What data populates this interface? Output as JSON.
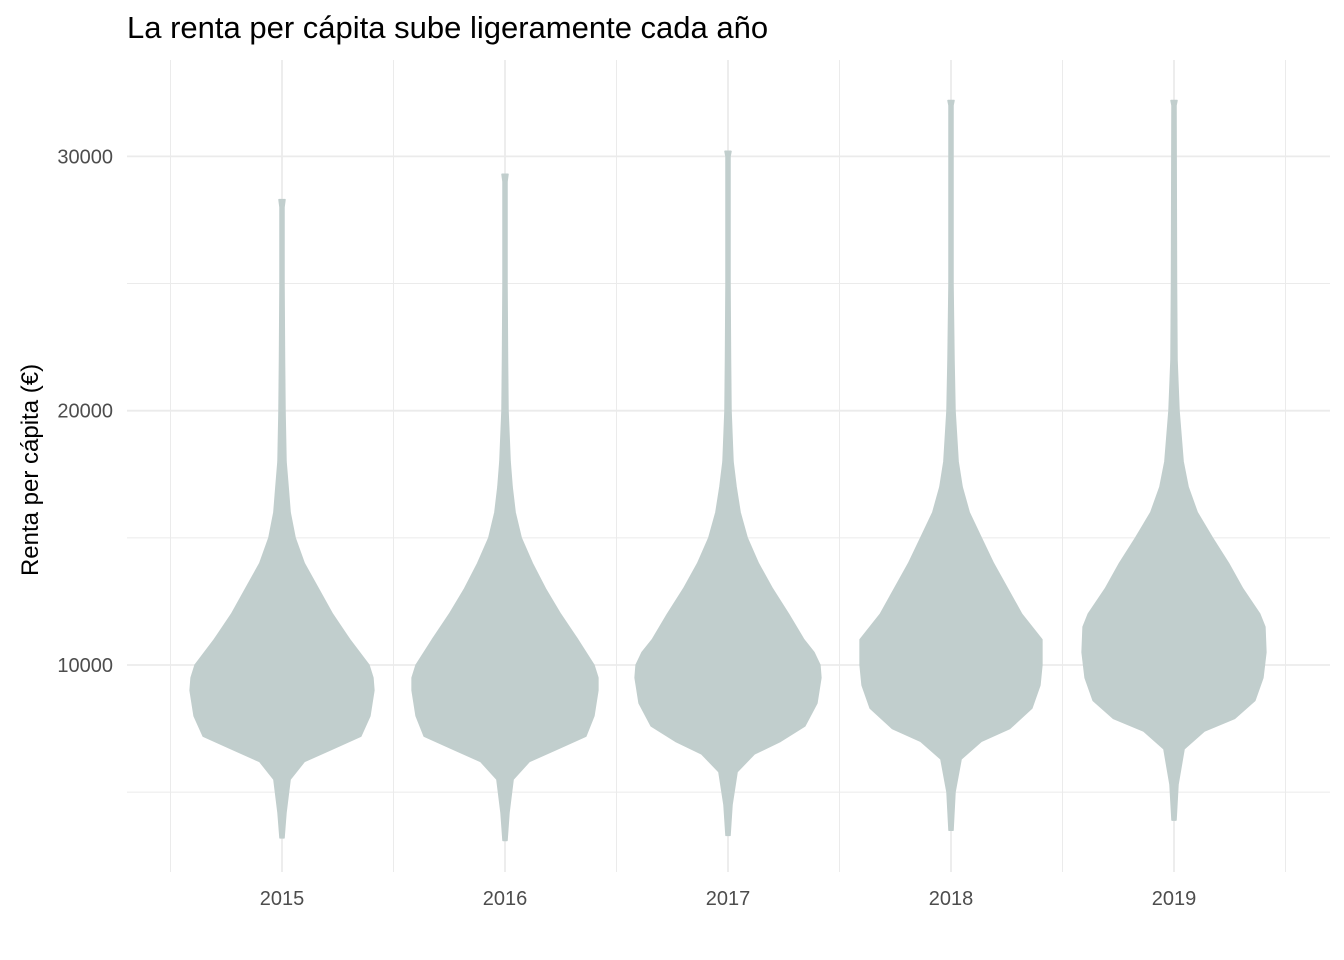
{
  "chart_data": {
    "type": "violin",
    "title": "La renta per cápita sube ligeramente cada año",
    "xlabel": "",
    "ylabel": "Renta per cápita (€)",
    "categories": [
      "2015",
      "2016",
      "2017",
      "2018",
      "2019"
    ],
    "yticks": [
      10000,
      20000,
      30000
    ],
    "ylim": [
      3000,
      33000
    ],
    "grid": true,
    "fill_color": "#c1cecd",
    "grid_color": "#ebebeb",
    "violins": [
      {
        "category": "2015",
        "min": 3200,
        "max": 28300,
        "profile": [
          [
            3200,
            0.02
          ],
          [
            4200,
            0.04
          ],
          [
            5500,
            0.08
          ],
          [
            6200,
            0.22
          ],
          [
            6700,
            0.5
          ],
          [
            7200,
            0.78
          ],
          [
            8000,
            0.87
          ],
          [
            9000,
            0.91
          ],
          [
            9500,
            0.9
          ],
          [
            10000,
            0.86
          ],
          [
            11000,
            0.67
          ],
          [
            12000,
            0.5
          ],
          [
            13000,
            0.36
          ],
          [
            14000,
            0.22
          ],
          [
            15000,
            0.13
          ],
          [
            16000,
            0.08
          ],
          [
            17000,
            0.06
          ],
          [
            18000,
            0.04
          ],
          [
            20000,
            0.03
          ],
          [
            22000,
            0.025
          ],
          [
            25000,
            0.02
          ],
          [
            28000,
            0.02
          ],
          [
            28300,
            0.03
          ]
        ]
      },
      {
        "category": "2016",
        "min": 3100,
        "max": 29300,
        "profile": [
          [
            3100,
            0.02
          ],
          [
            4200,
            0.04
          ],
          [
            5500,
            0.08
          ],
          [
            6200,
            0.24
          ],
          [
            6700,
            0.52
          ],
          [
            7200,
            0.8
          ],
          [
            8000,
            0.88
          ],
          [
            9000,
            0.92
          ],
          [
            9500,
            0.92
          ],
          [
            10000,
            0.88
          ],
          [
            11000,
            0.72
          ],
          [
            12000,
            0.55
          ],
          [
            13000,
            0.4
          ],
          [
            14000,
            0.27
          ],
          [
            15000,
            0.16
          ],
          [
            16000,
            0.1
          ],
          [
            17000,
            0.07
          ],
          [
            18000,
            0.05
          ],
          [
            20000,
            0.03
          ],
          [
            22000,
            0.025
          ],
          [
            25000,
            0.02
          ],
          [
            29000,
            0.02
          ],
          [
            29300,
            0.03
          ]
        ]
      },
      {
        "category": "2017",
        "min": 3300,
        "max": 30200,
        "profile": [
          [
            3300,
            0.02
          ],
          [
            4500,
            0.04
          ],
          [
            5800,
            0.09
          ],
          [
            6500,
            0.26
          ],
          [
            7000,
            0.52
          ],
          [
            7600,
            0.76
          ],
          [
            8500,
            0.88
          ],
          [
            9500,
            0.92
          ],
          [
            10000,
            0.91
          ],
          [
            10500,
            0.85
          ],
          [
            11000,
            0.75
          ],
          [
            12000,
            0.6
          ],
          [
            13000,
            0.44
          ],
          [
            14000,
            0.3
          ],
          [
            15000,
            0.19
          ],
          [
            16000,
            0.12
          ],
          [
            17000,
            0.08
          ],
          [
            18000,
            0.05
          ],
          [
            20000,
            0.03
          ],
          [
            22000,
            0.025
          ],
          [
            25000,
            0.02
          ],
          [
            30000,
            0.02
          ],
          [
            30200,
            0.03
          ]
        ]
      },
      {
        "category": "2018",
        "min": 3500,
        "max": 32200,
        "profile": [
          [
            3500,
            0.02
          ],
          [
            5000,
            0.04
          ],
          [
            6300,
            0.1
          ],
          [
            7000,
            0.3
          ],
          [
            7500,
            0.58
          ],
          [
            8300,
            0.8
          ],
          [
            9200,
            0.88
          ],
          [
            10000,
            0.9
          ],
          [
            11000,
            0.9
          ],
          [
            11500,
            0.8
          ],
          [
            12000,
            0.7
          ],
          [
            13000,
            0.56
          ],
          [
            14000,
            0.42
          ],
          [
            15000,
            0.3
          ],
          [
            16000,
            0.18
          ],
          [
            17000,
            0.11
          ],
          [
            18000,
            0.07
          ],
          [
            20000,
            0.04
          ],
          [
            22000,
            0.03
          ],
          [
            25000,
            0.02
          ],
          [
            32000,
            0.02
          ],
          [
            32200,
            0.03
          ]
        ]
      },
      {
        "category": "2019",
        "min": 3900,
        "max": 32200,
        "profile": [
          [
            3900,
            0.02
          ],
          [
            5300,
            0.04
          ],
          [
            6700,
            0.1
          ],
          [
            7400,
            0.3
          ],
          [
            7900,
            0.6
          ],
          [
            8600,
            0.8
          ],
          [
            9500,
            0.88
          ],
          [
            10500,
            0.91
          ],
          [
            11500,
            0.9
          ],
          [
            12000,
            0.85
          ],
          [
            13000,
            0.68
          ],
          [
            14000,
            0.54
          ],
          [
            15000,
            0.38
          ],
          [
            16000,
            0.23
          ],
          [
            17000,
            0.14
          ],
          [
            18000,
            0.09
          ],
          [
            20000,
            0.05
          ],
          [
            22000,
            0.03
          ],
          [
            25000,
            0.025
          ],
          [
            32000,
            0.02
          ],
          [
            32200,
            0.03
          ]
        ]
      }
    ]
  }
}
